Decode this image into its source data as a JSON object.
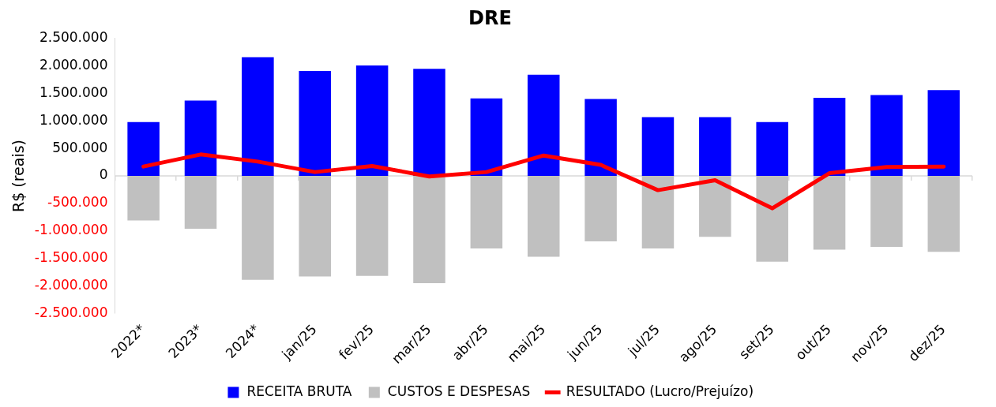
{
  "chart_data": {
    "type": "bar",
    "title": "DRE",
    "ylabel": "R$ (reais)",
    "categories": [
      "2022*",
      "2023*",
      "2024*",
      "jan/25",
      "fev/25",
      "mar/25",
      "abr/25",
      "mai/25",
      "jun/25",
      "jul/25",
      "ago/25",
      "set/25",
      "out/25",
      "nov/25",
      "dez/25"
    ],
    "series": [
      {
        "name": "RECEITA BRUTA",
        "color": "#0000ff",
        "values": [
          980000,
          1370000,
          2160000,
          1910000,
          2010000,
          1950000,
          1410000,
          1840000,
          1400000,
          1070000,
          1070000,
          980000,
          1420000,
          1470000,
          1560000
        ]
      },
      {
        "name": "CUSTOS E DESPESAS",
        "color": "#c0c0c0",
        "values": [
          -810000,
          -960000,
          -1890000,
          -1830000,
          -1820000,
          -1950000,
          -1320000,
          -1470000,
          -1190000,
          -1320000,
          -1110000,
          -1560000,
          -1340000,
          -1290000,
          -1380000
        ]
      },
      {
        "name": "RESULTADO (Lucro/Prejuízo)",
        "type": "line",
        "color": "#ff0000",
        "values": [
          170000,
          390000,
          260000,
          70000,
          180000,
          -10000,
          70000,
          370000,
          200000,
          -260000,
          -80000,
          -590000,
          50000,
          160000,
          170000
        ]
      }
    ],
    "ref_lines": [
      {
        "axis": "y",
        "value": 0,
        "color": "#d9d9d9"
      }
    ],
    "stacked": true,
    "marker": "none",
    "legend": "bottom",
    "grid": false,
    "ylim": [
      -2500000,
      2500000
    ],
    "yticks": [
      {
        "value": -2500000,
        "label": "-2.500.000"
      },
      {
        "value": -2000000,
        "label": "-2.000.000"
      },
      {
        "value": -1500000,
        "label": "-1.500.000"
      },
      {
        "value": -1000000,
        "label": "-1.000.000"
      },
      {
        "value": -500000,
        "label": "-500.000"
      },
      0,
      {
        "value": 500000,
        "label": "500.000"
      },
      {
        "value": 1000000,
        "label": "1.000.000"
      },
      {
        "value": 1500000,
        "label": "1.500.000"
      },
      {
        "value": 2000000,
        "label": "2.000.000"
      },
      {
        "value": 2500000,
        "label": "2.500.000"
      }
    ]
  }
}
